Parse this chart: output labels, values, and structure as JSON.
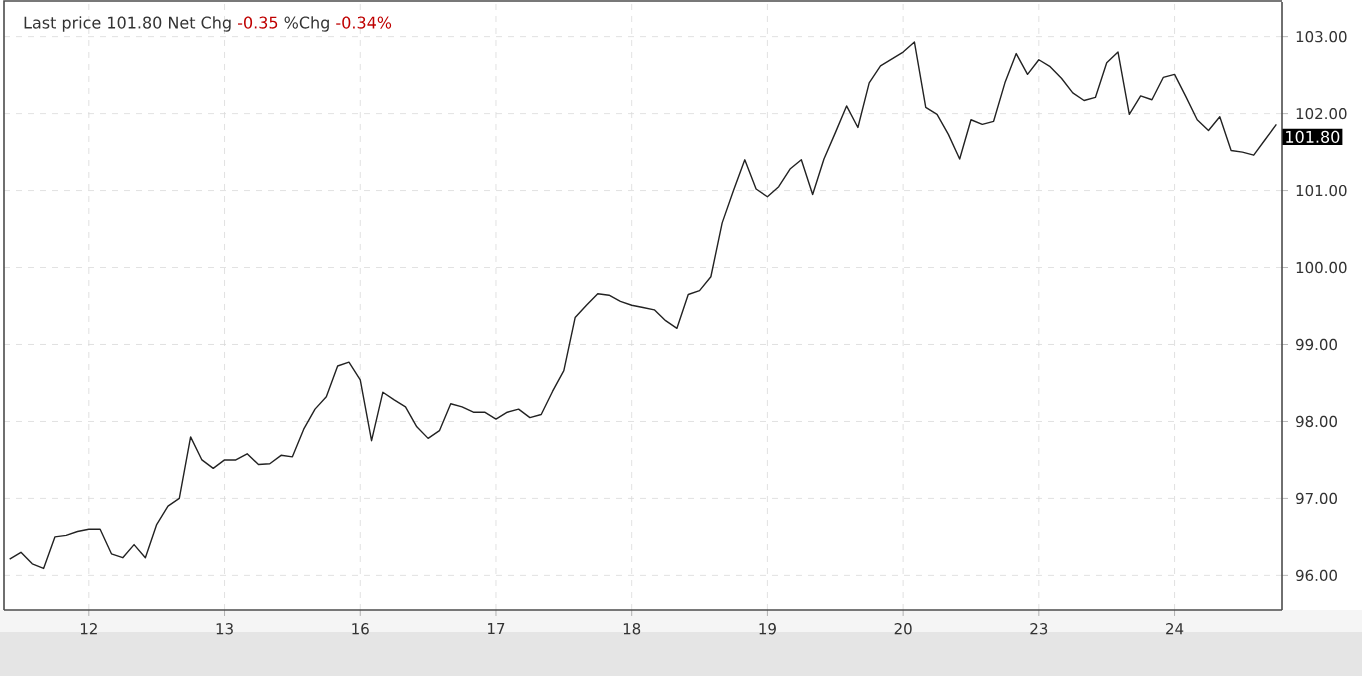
{
  "chart_data": {
    "type": "line",
    "annotations": [
      "Last price 101.80 Net Chg",
      "-0.35",
      "%Chg",
      "-0.34%",
      "101.80"
    ],
    "categories": [
      null,
      null,
      null,
      null,
      null,
      null,
      null,
      "12",
      null,
      null,
      null,
      null,
      null,
      null,
      null,
      null,
      null,
      null,
      null,
      "13",
      null,
      null,
      null,
      null,
      null,
      null,
      null,
      null,
      null,
      null,
      null,
      "16",
      null,
      null,
      null,
      null,
      null,
      null,
      null,
      null,
      null,
      null,
      null,
      "17",
      null,
      null,
      null,
      null,
      null,
      null,
      null,
      null,
      null,
      null,
      null,
      "18",
      null,
      null,
      null,
      null,
      null,
      null,
      null,
      null,
      null,
      null,
      null,
      "19",
      null,
      null,
      null,
      null,
      null,
      null,
      null,
      null,
      null,
      null,
      null,
      "20",
      null,
      null,
      null,
      null,
      null,
      null,
      null,
      null,
      null,
      null,
      null,
      "23",
      null,
      null,
      null,
      null,
      null,
      null,
      null,
      null,
      null,
      null,
      null,
      "24",
      null,
      null,
      null,
      null,
      null,
      null,
      null,
      null,
      null
    ],
    "series": [
      {
        "color": "#222222",
        "values": [
          96.21,
          96.3,
          96.15,
          96.09,
          96.5,
          96.52,
          96.57,
          96.6,
          96.6,
          96.28,
          96.23,
          96.4,
          96.23,
          96.66,
          96.9,
          97.0,
          97.8,
          97.5,
          97.39,
          97.5,
          97.5,
          97.58,
          97.44,
          97.45,
          97.56,
          97.54,
          97.9,
          98.16,
          98.32,
          98.72,
          98.77,
          98.54,
          97.75,
          98.38,
          98.28,
          98.19,
          97.93,
          97.78,
          97.88,
          98.23,
          98.19,
          98.12,
          98.12,
          98.03,
          98.12,
          98.16,
          98.05,
          98.09,
          98.39,
          98.66,
          99.35,
          99.51,
          99.66,
          99.64,
          99.56,
          99.51,
          99.48,
          99.45,
          99.31,
          99.21,
          99.65,
          99.7,
          99.88,
          100.58,
          101.0,
          101.4,
          101.02,
          100.92,
          101.05,
          101.28,
          101.4,
          100.95,
          101.41,
          101.75,
          102.1,
          101.82,
          102.4,
          102.62,
          102.71,
          102.8,
          102.93,
          102.08,
          101.99,
          101.73,
          101.41,
          101.92,
          101.86,
          101.9,
          102.4,
          102.78,
          102.51,
          102.7,
          102.61,
          102.46,
          102.27,
          102.17,
          102.21,
          102.66,
          102.8,
          101.99,
          102.23,
          102.18,
          102.47,
          102.51,
          102.22,
          101.92,
          101.78,
          101.96,
          101.52,
          101.5,
          101.46,
          101.66,
          101.86
        ]
      }
    ],
    "ylim": [
      95.55,
      103.45
    ],
    "yticks": [
      {
        "value": 96,
        "label": "96.00"
      },
      {
        "value": 97,
        "label": "97.00"
      },
      {
        "value": 98,
        "label": "98.00"
      },
      {
        "value": 99,
        "label": "99.00"
      },
      {
        "value": 100,
        "label": "100.00"
      },
      {
        "value": 101,
        "label": "101.00"
      },
      {
        "value": 102,
        "label": "102.00"
      },
      {
        "value": 103,
        "label": "103.00"
      }
    ],
    "grid": true,
    "marker": "none",
    "line_style": "solid"
  }
}
